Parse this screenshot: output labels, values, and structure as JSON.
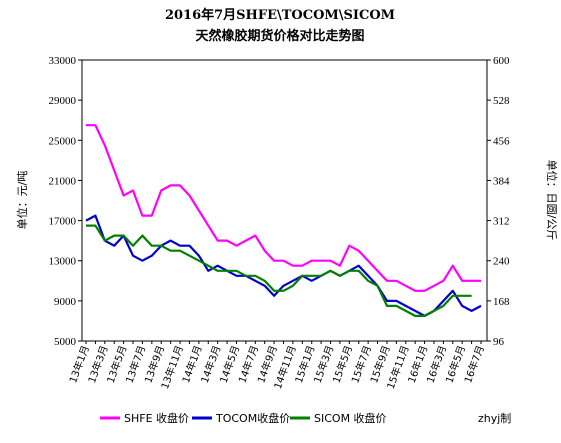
{
  "chart_data": {
    "type": "line",
    "title": "2016年7月SHFE\\TOCOM\\SICOM",
    "subtitle": "天然橡胶期货价格对比走势图",
    "ylabel": "单位：元/吨",
    "y2label": "单位：日圆/公斤",
    "credit": "zhyj制",
    "categories": [
      "13年1月",
      null,
      "13年3月",
      null,
      "13年5月",
      null,
      "13年7月",
      null,
      "13年9月",
      null,
      "13年11月",
      null,
      "14年1月",
      null,
      "14年3月",
      null,
      "14年5月",
      null,
      "14年7月",
      null,
      "14年9月",
      null,
      "14年11月",
      null,
      "15年1月",
      null,
      "15年3月",
      null,
      "15年5月",
      null,
      "15年7月",
      null,
      "15年9月",
      null,
      "15年11月",
      null,
      "16年1月",
      null,
      "16年3月",
      null,
      "16年5月",
      null,
      "16年7月"
    ],
    "ylim": [
      5000,
      33000
    ],
    "yticks": [
      5000,
      9000,
      13000,
      17000,
      21000,
      25000,
      29000,
      33000
    ],
    "y2lim": [
      96,
      600
    ],
    "y2ticks": [
      96,
      168,
      240,
      312,
      384,
      456,
      528,
      600
    ],
    "series": [
      {
        "name": "SHFE 收盘价",
        "color": "#ff00ff",
        "values": [
          26500,
          26500,
          24500,
          22000,
          19500,
          20000,
          17500,
          17500,
          20000,
          20500,
          20500,
          19500,
          18000,
          16500,
          15000,
          15000,
          14500,
          15000,
          15500,
          14000,
          13000,
          13000,
          12500,
          12500,
          13000,
          13000,
          13000,
          12500,
          14500,
          14000,
          13000,
          12000,
          11000,
          11000,
          10500,
          10000,
          10000,
          10500,
          11000,
          12500,
          11000,
          11000,
          11000
        ]
      },
      {
        "name": "TOCOM收盘价",
        "color": "#0000cc",
        "axis": "y2",
        "values": [
          312,
          321,
          276,
          267,
          285,
          249,
          240,
          249,
          267,
          276,
          267,
          267,
          249,
          222,
          231,
          222,
          213,
          213,
          204,
          195,
          177,
          195,
          204,
          213,
          204,
          213,
          222,
          213,
          222,
          231,
          213,
          195,
          168,
          168,
          159,
          150,
          141,
          150,
          168,
          186,
          159,
          150,
          159
        ]
      },
      {
        "name": "SICOM 收盘价",
        "color": "#008000",
        "values": [
          16500,
          16500,
          15000,
          15500,
          15500,
          14500,
          15500,
          14500,
          14500,
          14000,
          14000,
          13500,
          13000,
          12500,
          12000,
          12000,
          12000,
          11500,
          11500,
          11000,
          10000,
          10000,
          10500,
          11500,
          11500,
          11500,
          12000,
          11500,
          12000,
          12000,
          11000,
          10500,
          8500,
          8500,
          8000,
          7500,
          7500,
          8000,
          8500,
          9500,
          9500,
          9500,
          null
        ]
      }
    ]
  }
}
